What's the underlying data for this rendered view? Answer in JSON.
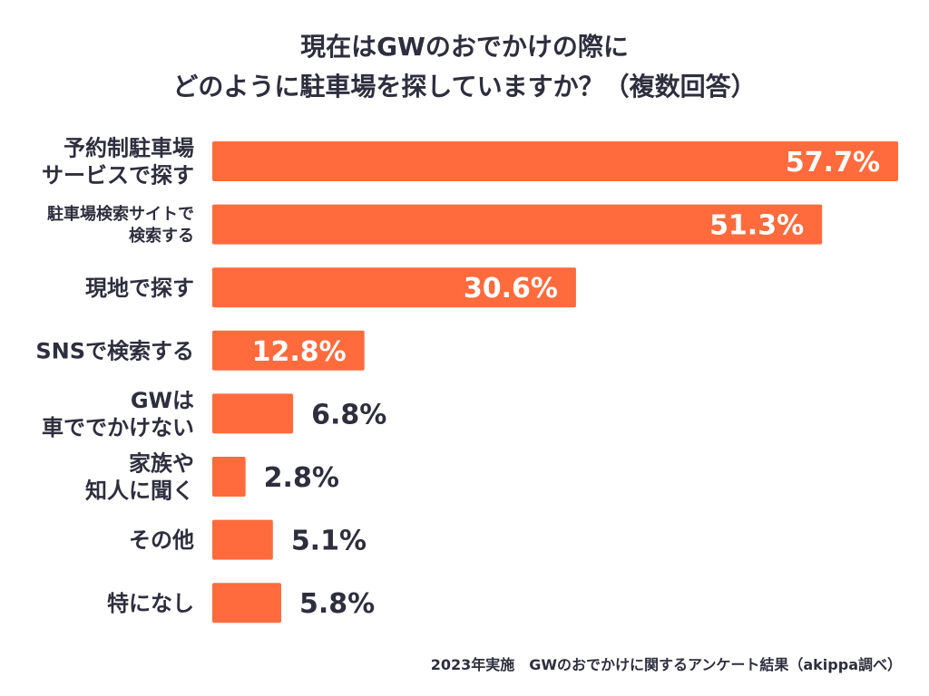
{
  "chart_data": {
    "type": "bar",
    "orientation": "horizontal",
    "title_lines": [
      "現在はGWのおでかけの際に",
      "どのように駐車場を探していますか？（複数回答）"
    ],
    "categories": [
      [
        "予約制駐車場",
        "サービスで探す"
      ],
      [
        "駐車場検索サイトで",
        "検索する"
      ],
      [
        "現地で探す"
      ],
      [
        "SNSで検索する"
      ],
      [
        "GWは",
        "車ででかけない"
      ],
      [
        "家族や",
        "知人に聞く"
      ],
      [
        "その他"
      ],
      [
        "特になし"
      ]
    ],
    "values": [
      57.7,
      51.3,
      30.6,
      12.8,
      6.8,
      2.8,
      5.1,
      5.8
    ],
    "value_labels": [
      "57.7%",
      "51.3%",
      "30.6%",
      "12.8%",
      "6.8%",
      "2.8%",
      "5.1%",
      "5.8%"
    ],
    "unit": "%",
    "xlim": [
      0,
      57.7
    ],
    "bar_color": "#ff6b3d",
    "label_inside_color": "#ffffff",
    "label_outside_color": "#2e2e3e",
    "grid": false,
    "legend": "none"
  },
  "footer": "2023年実施　GWのおでかけに関するアンケート結果（akippa調べ）"
}
